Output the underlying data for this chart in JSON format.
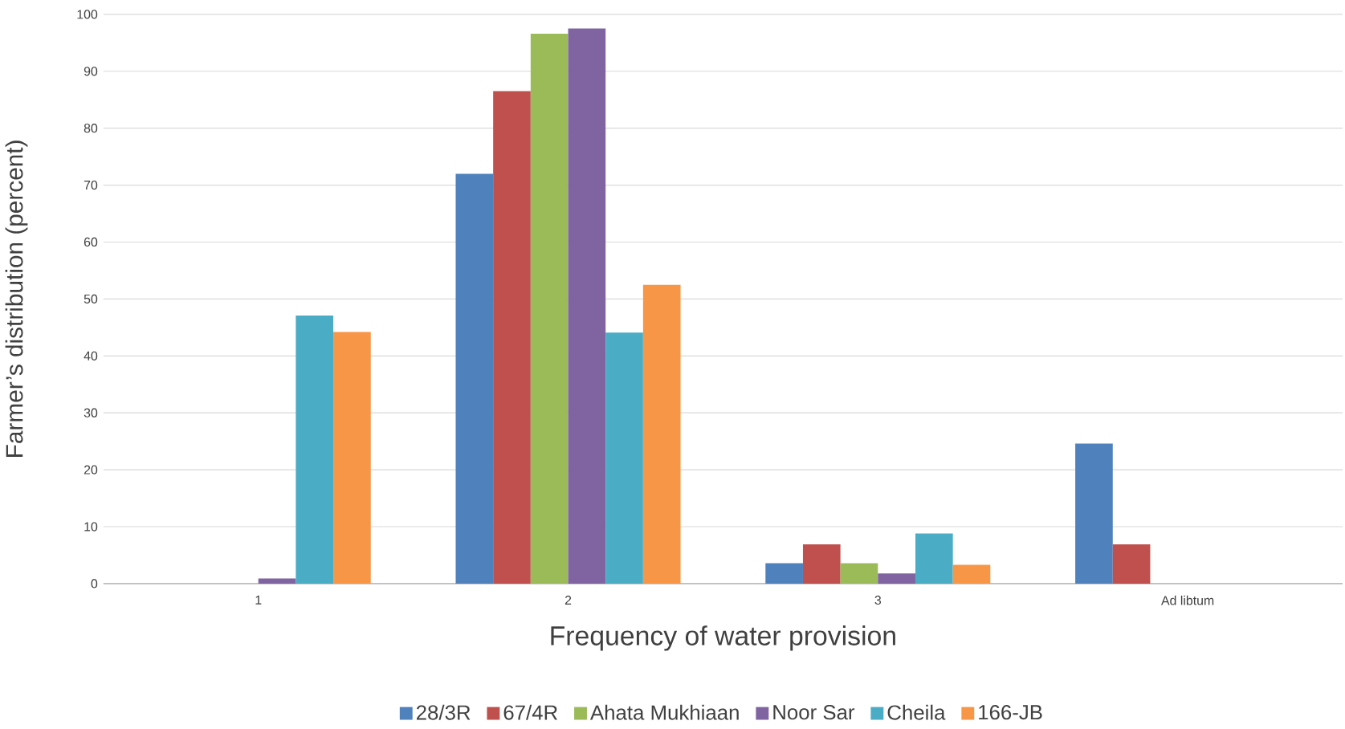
{
  "chart_data": {
    "type": "bar",
    "xlabel": "Frequency of water provision",
    "ylabel": "Farmer’s distribution (percent)",
    "categories": [
      "1",
      "2",
      "3",
      "Ad libtum"
    ],
    "series": [
      {
        "name": "28/3R",
        "color": "#4f81bd",
        "values": [
          0,
          72.0,
          3.6,
          24.6
        ]
      },
      {
        "name": "67/4R",
        "color": "#c0504d",
        "values": [
          0,
          86.5,
          6.9,
          6.9
        ]
      },
      {
        "name": "Ahata Mukhiaan",
        "color": "#9bbb59",
        "values": [
          0,
          96.6,
          3.6,
          0
        ]
      },
      {
        "name": "Noor Sar",
        "color": "#8064a2",
        "values": [
          0.9,
          97.5,
          1.8,
          0
        ]
      },
      {
        "name": "Cheila",
        "color": "#4bacc6",
        "values": [
          47.1,
          44.1,
          8.8,
          0
        ]
      },
      {
        "name": "166-JB",
        "color": "#f79646",
        "values": [
          44.2,
          52.5,
          3.3,
          0
        ]
      }
    ],
    "ylim": [
      0,
      100
    ],
    "yticks": [
      0,
      10,
      20,
      30,
      40,
      50,
      60,
      70,
      80,
      90,
      100
    ],
    "grid": "y",
    "legend": "bottom"
  }
}
